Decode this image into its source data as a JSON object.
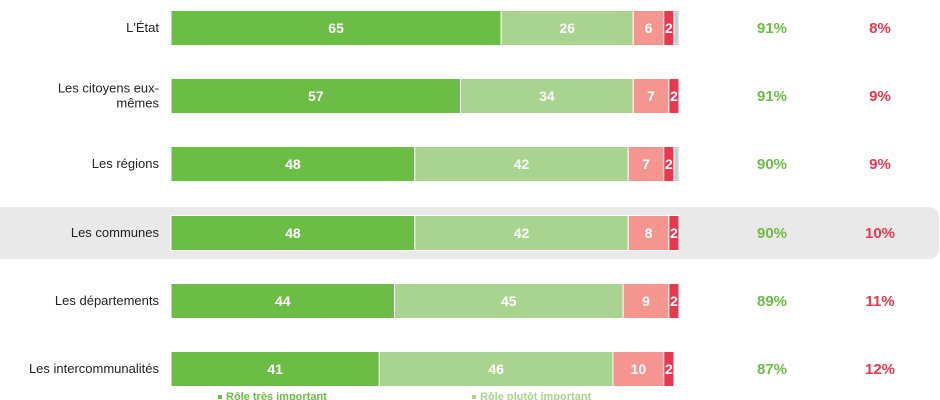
{
  "chart_data": {
    "type": "bar",
    "orientation": "horizontal",
    "stacked": true,
    "categories": [
      "L'État",
      "Les citoyens eux-mêmes",
      "Les régions",
      "Les communes",
      "Les départements",
      "Les intercommunalités"
    ],
    "category_lines": [
      [
        "L'État"
      ],
      [
        "Les citoyens eux-",
        "mêmes"
      ],
      [
        "Les régions"
      ],
      [
        "Les communes"
      ],
      [
        "Les départements"
      ],
      [
        "Les intercommunalités"
      ]
    ],
    "series": [
      {
        "name": "Rôle très important",
        "values": [
          65,
          57,
          48,
          48,
          44,
          41
        ],
        "color": "#6cbd45",
        "text_color": "#ffffff"
      },
      {
        "name": "Rôle plutôt important",
        "values": [
          26,
          34,
          42,
          42,
          45,
          46
        ],
        "color": "#a8d48f",
        "text_color": "#ffffff"
      },
      {
        "name": "",
        "values": [
          6,
          7,
          7,
          8,
          9,
          10
        ],
        "color": "#f4958f",
        "text_color": "#ffffff"
      },
      {
        "name": "",
        "values": [
          2,
          2,
          2,
          2,
          2,
          2
        ],
        "color": "#e8384f",
        "text_color": "#ffffff"
      },
      {
        "name": "",
        "values": [
          1,
          0,
          1,
          0,
          0,
          0
        ],
        "color": "#cccccc",
        "text_color": "#ffffff"
      }
    ],
    "totals": {
      "important": [
        "91%",
        "91%",
        "90%",
        "90%",
        "89%",
        "87%"
      ],
      "not_important": [
        "8%",
        "9%",
        "9%",
        "10%",
        "11%",
        "12%"
      ]
    },
    "total_colors": {
      "important": "#6cbd45",
      "not_important": "#e8384f"
    },
    "highlight_category": "Les communes",
    "highlight_color": "#e9e9e9",
    "legend": [
      {
        "label": "Rôle très important",
        "color": "#6cbd45"
      },
      {
        "label": "Rôle plutôt important",
        "color": "#a8d48f"
      }
    ]
  }
}
